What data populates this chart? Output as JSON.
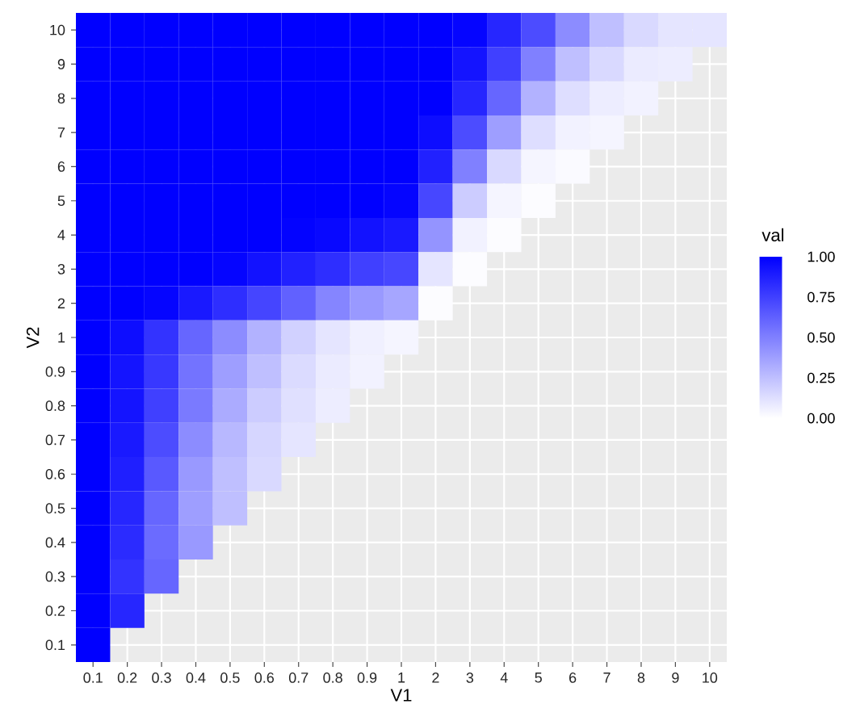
{
  "chart_data": {
    "type": "heatmap",
    "xlabel": "V1",
    "ylabel": "V2",
    "clabel": "val",
    "categories": [
      "0.1",
      "0.2",
      "0.3",
      "0.4",
      "0.5",
      "0.6",
      "0.7",
      "0.8",
      "0.9",
      "1",
      "2",
      "3",
      "4",
      "5",
      "6",
      "7",
      "8",
      "9",
      "10"
    ],
    "y_categories": [
      "10",
      "9",
      "8",
      "7",
      "6",
      "5",
      "4",
      "3",
      "2",
      "1",
      "0.9",
      "0.8",
      "0.7",
      "0.6",
      "0.5",
      "0.4",
      "0.3",
      "0.2",
      "0.1"
    ],
    "cells": [
      [
        1,
        1,
        1,
        1,
        1,
        1,
        1,
        1,
        1,
        1,
        1,
        0.98,
        0.85,
        0.7,
        0.45,
        0.25,
        0.15,
        0.1,
        0.1
      ],
      [
        1,
        1,
        1,
        1,
        1,
        1,
        1,
        1,
        1,
        1,
        1,
        0.92,
        0.75,
        0.5,
        0.25,
        0.15,
        0.08,
        0.07,
        null
      ],
      [
        1,
        1,
        1,
        1,
        1,
        1,
        1,
        1,
        1,
        1,
        1,
        0.85,
        0.6,
        0.3,
        0.13,
        0.07,
        0.05,
        null,
        null
      ],
      [
        1,
        1,
        1,
        1,
        1,
        1,
        1,
        1,
        1,
        1,
        0.95,
        0.7,
        0.38,
        0.13,
        0.05,
        0.04,
        null,
        null,
        null
      ],
      [
        1,
        1,
        1,
        1,
        1,
        1,
        1,
        1,
        1,
        1,
        0.87,
        0.5,
        0.15,
        0.04,
        0.02,
        null,
        null,
        null,
        null
      ],
      [
        1,
        1,
        1,
        1,
        1,
        1,
        1,
        1,
        1,
        0.98,
        0.72,
        0.2,
        0.04,
        0.01,
        null,
        null,
        null,
        null,
        null
      ],
      [
        1,
        1,
        1,
        1,
        1,
        1,
        0.99,
        0.97,
        0.93,
        0.9,
        0.42,
        0.05,
        0.01,
        null,
        null,
        null,
        null,
        null,
        null
      ],
      [
        1,
        1,
        1,
        1,
        0.98,
        0.93,
        0.87,
        0.82,
        0.75,
        0.72,
        0.1,
        0.01,
        null,
        null,
        null,
        null,
        null,
        null,
        null
      ],
      [
        1,
        1,
        0.98,
        0.9,
        0.82,
        0.73,
        0.62,
        0.48,
        0.4,
        0.35,
        0.01,
        null,
        null,
        null,
        null,
        null,
        null,
        null,
        null
      ],
      [
        1,
        0.95,
        0.8,
        0.6,
        0.45,
        0.3,
        0.18,
        0.1,
        0.06,
        0.04,
        null,
        null,
        null,
        null,
        null,
        null,
        null,
        null,
        null
      ],
      [
        1,
        0.92,
        0.78,
        0.55,
        0.38,
        0.25,
        0.14,
        0.08,
        0.05,
        null,
        null,
        null,
        null,
        null,
        null,
        null,
        null,
        null,
        null
      ],
      [
        1,
        0.92,
        0.75,
        0.52,
        0.33,
        0.2,
        0.12,
        0.07,
        null,
        null,
        null,
        null,
        null,
        null,
        null,
        null,
        null,
        null,
        null
      ],
      [
        1,
        0.9,
        0.7,
        0.45,
        0.28,
        0.16,
        0.1,
        null,
        null,
        null,
        null,
        null,
        null,
        null,
        null,
        null,
        null,
        null,
        null
      ],
      [
        1,
        0.88,
        0.65,
        0.4,
        0.25,
        0.15,
        null,
        null,
        null,
        null,
        null,
        null,
        null,
        null,
        null,
        null,
        null,
        null,
        null
      ],
      [
        1,
        0.85,
        0.6,
        0.38,
        0.25,
        null,
        null,
        null,
        null,
        null,
        null,
        null,
        null,
        null,
        null,
        null,
        null,
        null,
        null
      ],
      [
        1,
        0.83,
        0.58,
        0.4,
        null,
        null,
        null,
        null,
        null,
        null,
        null,
        null,
        null,
        null,
        null,
        null,
        null,
        null,
        null
      ],
      [
        1,
        0.8,
        0.6,
        null,
        null,
        null,
        null,
        null,
        null,
        null,
        null,
        null,
        null,
        null,
        null,
        null,
        null,
        null,
        null
      ],
      [
        1,
        0.85,
        null,
        null,
        null,
        null,
        null,
        null,
        null,
        null,
        null,
        null,
        null,
        null,
        null,
        null,
        null,
        null,
        null
      ],
      [
        1,
        null,
        null,
        null,
        null,
        null,
        null,
        null,
        null,
        null,
        null,
        null,
        null,
        null,
        null,
        null,
        null,
        null,
        null
      ]
    ],
    "colors": [
      "#ffffff",
      "#0000ff"
    ],
    "clim": [
      0,
      1
    ],
    "cticks": [
      {
        "value": 0,
        "label": "0.00"
      },
      {
        "value": 0.25,
        "label": "0.25"
      },
      {
        "value": 0.5,
        "label": "0.50"
      },
      {
        "value": 0.75,
        "label": "0.75"
      },
      {
        "value": 1,
        "label": "1.00"
      }
    ],
    "grid": true
  }
}
